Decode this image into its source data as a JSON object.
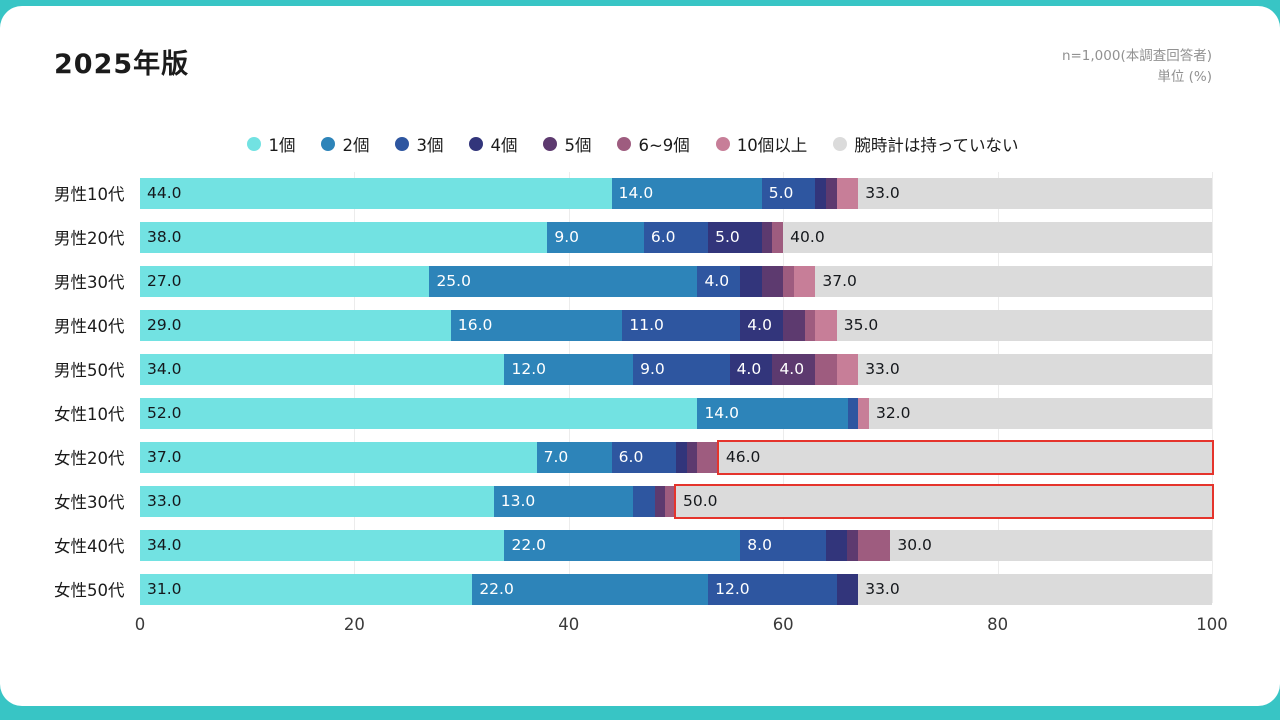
{
  "header": {
    "title": "2025年版",
    "note_line1": "n=1,000(本調査回答者)",
    "note_line2": "単位 (%)"
  },
  "chart_data": {
    "type": "bar",
    "orientation": "horizontal",
    "stacked": true,
    "unit": "%",
    "xlim": [
      0,
      100
    ],
    "x_ticks": [
      0,
      20,
      40,
      60,
      80,
      100
    ],
    "grid": true,
    "legend_position": "top",
    "label_min_value": 4,
    "value_decimals": 1,
    "highlight_color": "#e5342c",
    "categories": [
      "男性10代",
      "男性20代",
      "男性30代",
      "男性40代",
      "男性50代",
      "女性10代",
      "女性20代",
      "女性30代",
      "女性40代",
      "女性50代"
    ],
    "series": [
      {
        "name": "1個",
        "color": "#72e2e2",
        "label_color": "#15181c",
        "values": [
          44,
          38,
          27,
          29,
          34,
          52,
          37,
          33,
          34,
          31
        ]
      },
      {
        "name": "2個",
        "color": "#2d84b9",
        "label_color": "#ffffff",
        "values": [
          14,
          9,
          25,
          16,
          12,
          14,
          7,
          13,
          22,
          22
        ]
      },
      {
        "name": "3個",
        "color": "#2e56a0",
        "label_color": "#ffffff",
        "values": [
          5,
          6,
          4,
          11,
          9,
          1,
          6,
          2,
          8,
          12
        ]
      },
      {
        "name": "4個",
        "color": "#32357b",
        "label_color": "#ffffff",
        "values": [
          1,
          5,
          2,
          4,
          4,
          0,
          1,
          0,
          2,
          2
        ]
      },
      {
        "name": "5個",
        "color": "#5d3a6f",
        "label_color": "#ffffff",
        "values": [
          1,
          1,
          2,
          2,
          4,
          0,
          1,
          1,
          1,
          0
        ]
      },
      {
        "name": "6~9個",
        "color": "#9e5c7f",
        "label_color": "#ffffff",
        "values": [
          0,
          1,
          1,
          1,
          2,
          0,
          2,
          1,
          3,
          0
        ]
      },
      {
        "name": "10個以上",
        "color": "#c77e98",
        "label_color": "#ffffff",
        "values": [
          2,
          0,
          2,
          2,
          2,
          1,
          0,
          0,
          0,
          0
        ]
      },
      {
        "name": "腕時計は持っていない",
        "color": "#dbdbdb",
        "label_color": "#15181c",
        "values": [
          33,
          40,
          37,
          35,
          33,
          32,
          46,
          50,
          30,
          33
        ]
      }
    ],
    "highlighted_cells": [
      {
        "category": "女性20代",
        "series": "腕時計は持っていない"
      },
      {
        "category": "女性30代",
        "series": "腕時計は持っていない"
      }
    ]
  }
}
